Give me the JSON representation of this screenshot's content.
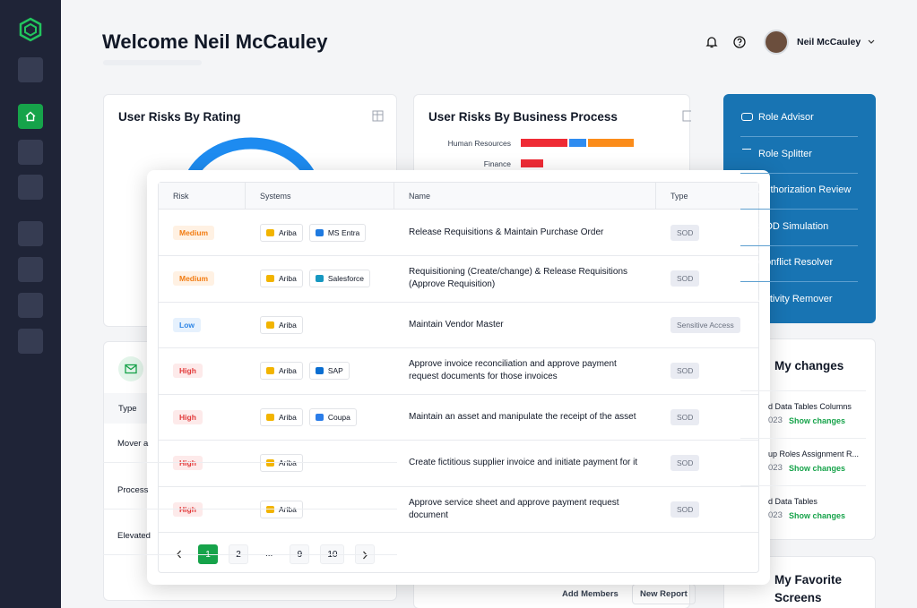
{
  "header": {
    "title": "Welcome Neil McCauley",
    "user": "Neil McCauley"
  },
  "rating_card": {
    "title": "User Risks By Rating"
  },
  "process_card": {
    "title": "User Risks By Business Process"
  },
  "risk_by_process": {
    "categories": [
      "Human Resources",
      "Finance"
    ],
    "series": [
      {
        "color": "#ef2b35",
        "values": [
          52,
          25
        ]
      },
      {
        "color": "#2f8cf0",
        "values": [
          19,
          null
        ]
      },
      {
        "color": "#fb8c1a",
        "values": [
          51,
          null
        ]
      }
    ]
  },
  "advisor_menu": [
    "Role Advisor",
    "Role Splitter",
    "Authorization Review",
    "SOD Simulation",
    "Conflict Resolver",
    "Activity Remover"
  ],
  "left_card": {
    "header": "Type",
    "rows": [
      "Mover a",
      "Process",
      "Elevated"
    ]
  },
  "middle_buttons": [
    "Add Members",
    "New Report"
  ],
  "my_changes": {
    "title": "My changes",
    "items": [
      {
        "title": "d Data Tables Columns",
        "date": "023",
        "link": "Show changes"
      },
      {
        "title": "up Roles Assignment R...",
        "date": "023",
        "link": "Show changes"
      },
      {
        "title": "d Data Tables",
        "date": "023",
        "link": "Show changes"
      }
    ]
  },
  "favorites": {
    "title": "My Favorite Screens"
  },
  "modal": {
    "headers": [
      "Risk",
      "Systems",
      "Name",
      "Type"
    ],
    "rows": [
      {
        "risk": "Medium",
        "tone": "orange",
        "systems": [
          {
            "label": "Ariba",
            "color": "#f2b400"
          },
          {
            "label": "MS Entra",
            "color": "#1f7ae0"
          }
        ],
        "name": "Release Requisitions & Maintain Purchase Order",
        "type": "SOD"
      },
      {
        "risk": "Medium",
        "tone": "orange",
        "systems": [
          {
            "label": "Ariba",
            "color": "#f2b400"
          },
          {
            "label": "Salesforce",
            "color": "#1798c1"
          }
        ],
        "name": "Requisitioning (Create/change) & Release Requisitions (Approve Requisition)",
        "type": "SOD"
      },
      {
        "risk": "Low",
        "tone": "blue",
        "systems": [
          {
            "label": "Ariba",
            "color": "#f2b400"
          }
        ],
        "name": "Maintain Vendor Master",
        "type": "Sensitive Access"
      },
      {
        "risk": "High",
        "tone": "red",
        "systems": [
          {
            "label": "Ariba",
            "color": "#f2b400"
          },
          {
            "label": "SAP",
            "color": "#0a6ed1"
          }
        ],
        "name": "Approve invoice reconciliation and approve payment request documents for those invoices",
        "type": "SOD"
      },
      {
        "risk": "High",
        "tone": "red",
        "systems": [
          {
            "label": "Ariba",
            "color": "#f2b400"
          },
          {
            "label": "Coupa",
            "color": "#2b7de9"
          }
        ],
        "name": "Maintain an asset and manipulate the receipt of the asset",
        "type": "SOD"
      },
      {
        "risk": "High",
        "tone": "red",
        "systems": [
          {
            "label": "Ariba",
            "color": "#f2b400"
          }
        ],
        "name": "Create fictitious supplier invoice and initiate payment for it",
        "type": "SOD"
      },
      {
        "risk": "High",
        "tone": "red",
        "systems": [
          {
            "label": "Ariba",
            "color": "#f2b400"
          }
        ],
        "name": "Approve service sheet and approve payment request document",
        "type": "SOD"
      }
    ],
    "pagination": {
      "pages": [
        1,
        2,
        "...",
        9,
        10
      ],
      "current": 1
    }
  }
}
